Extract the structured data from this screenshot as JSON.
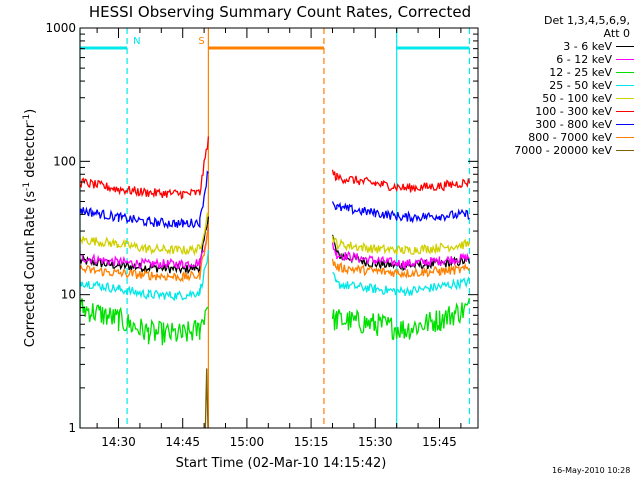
{
  "chart_data": {
    "type": "line",
    "title": "HESSI Observing Summary Count Rates, Corrected",
    "xlabel": "Start Time (02-Mar-10 14:15:42)",
    "ylabel": "Corrected Count Rate (s⁻¹ detector⁻¹)",
    "yscale": "log",
    "ylim": [
      1,
      1000
    ],
    "xlim": [
      "14:21",
      "15:54"
    ],
    "y_ticks": [
      "1",
      "10",
      "100",
      "1000"
    ],
    "x_ticks": [
      "14:30",
      "14:45",
      "15:00",
      "15:15",
      "15:30",
      "15:45"
    ],
    "legend_header": [
      "Det 1,3,4,5,6,9,",
      "Att 0"
    ],
    "series": [
      {
        "name": "3 - 6 keV",
        "color": "#000000",
        "x": [
          "14:21",
          "14:30",
          "14:37",
          "14:45",
          "14:49",
          "14:51",
          "15:20",
          "15:21",
          "15:30",
          "15:37",
          "15:45",
          "15:52"
        ],
        "y": [
          18,
          16.5,
          16,
          15.5,
          16,
          40,
          28,
          20,
          17,
          16.5,
          17,
          18
        ]
      },
      {
        "name": "6 - 12 keV",
        "color": "#ff00ff",
        "x": [
          "14:21",
          "14:30",
          "14:37",
          "14:45",
          "14:49",
          "14:51",
          "15:20",
          "15:21",
          "15:30",
          "15:37",
          "15:45",
          "15:52"
        ],
        "y": [
          19,
          17.5,
          17,
          17,
          17.5,
          30,
          24,
          20,
          18,
          17,
          18,
          19
        ]
      },
      {
        "name": "12 - 25 keV",
        "color": "#00e000",
        "x": [
          "14:21",
          "14:30",
          "14:37",
          "14:45",
          "14:49",
          "14:51",
          "15:20",
          "15:21",
          "15:30",
          "15:37",
          "15:45",
          "15:52"
        ],
        "y": [
          8,
          6.5,
          5.2,
          5,
          5.5,
          9,
          6.5,
          6.5,
          6,
          5.5,
          6.5,
          8
        ]
      },
      {
        "name": "25 - 50 keV",
        "color": "#00e8e8",
        "x": [
          "14:21",
          "14:30",
          "14:37",
          "14:45",
          "14:49",
          "14:51",
          "15:20",
          "15:21",
          "15:30",
          "15:37",
          "15:45",
          "15:52"
        ],
        "y": [
          12.5,
          11,
          10,
          9.8,
          10.5,
          20,
          14,
          12,
          11,
          10.5,
          11.5,
          12.5
        ]
      },
      {
        "name": "50 - 100 keV",
        "color": "#d0d000",
        "x": [
          "14:21",
          "14:30",
          "14:37",
          "14:45",
          "14:49",
          "14:51",
          "15:20",
          "15:21",
          "15:30",
          "15:37",
          "15:45",
          "15:52"
        ],
        "y": [
          26,
          24,
          22,
          21.5,
          22,
          42,
          27,
          24,
          22,
          21.5,
          22.5,
          24
        ]
      },
      {
        "name": "100 - 300 keV",
        "color": "#ff0000",
        "x": [
          "14:21",
          "14:30",
          "14:37",
          "14:45",
          "14:49",
          "14:51",
          "15:20",
          "15:21",
          "15:30",
          "15:37",
          "15:45",
          "15:52"
        ],
        "y": [
          70,
          62,
          58,
          57,
          58,
          150,
          82,
          76,
          68,
          63,
          65,
          70
        ]
      },
      {
        "name": "300 - 800 keV",
        "color": "#0000ff",
        "x": [
          "14:21",
          "14:30",
          "14:37",
          "14:45",
          "14:49",
          "14:51",
          "15:20",
          "15:21",
          "15:30",
          "15:37",
          "15:45",
          "15:52"
        ],
        "y": [
          43,
          38,
          35,
          34,
          35,
          88,
          50,
          45,
          41,
          38,
          39,
          40
        ]
      },
      {
        "name": "800 - 7000 keV",
        "color": "#ff8000",
        "x": [
          "14:21",
          "14:30",
          "14:37",
          "14:45",
          "14:49",
          "14:51",
          "15:20",
          "15:21",
          "15:30",
          "15:37",
          "15:45",
          "15:52"
        ],
        "y": [
          15.5,
          14.5,
          14,
          13.5,
          14,
          32,
          18,
          16,
          15,
          14.5,
          15,
          15.5
        ]
      },
      {
        "name": "7000 - 20000 keV",
        "color": "#806000",
        "x": [
          "14:50.3",
          "14:50.6",
          "14:50.9"
        ],
        "y": [
          1,
          2.8,
          1
        ]
      }
    ],
    "annotations": [
      {
        "label": "N",
        "color": "#00e8e8",
        "type": "night",
        "intervals": [
          [
            "14:21",
            "14:32"
          ],
          [
            "15:35",
            "15:52"
          ]
        ]
      },
      {
        "label": "S",
        "color": "#ff8000",
        "type": "saa",
        "intervals": [
          [
            "14:51",
            "15:18"
          ]
        ]
      }
    ],
    "grid": false,
    "legend_position": "right, outside plot"
  },
  "footer": {
    "timestamp": "16-May-2010 10:28"
  }
}
